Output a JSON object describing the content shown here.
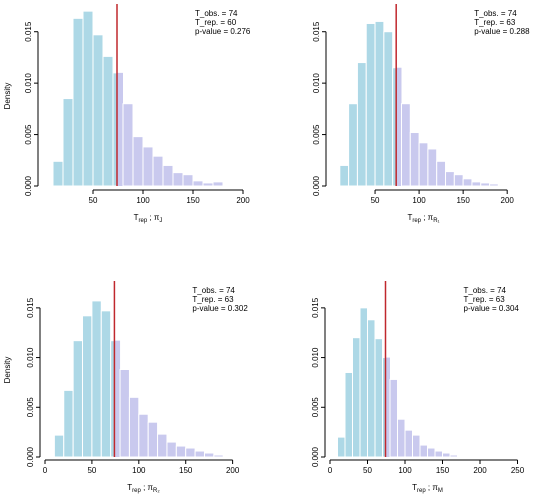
{
  "chart_data": [
    {
      "type": "bar",
      "title": "",
      "ylabel": "Density",
      "xlabel_main": "T",
      "xlabel_sub": "rep",
      "xlabel_rest": " ; π",
      "xlabel_subsub": "J",
      "annotations": [
        "T_obs. = 74",
        "T_rep. = 60",
        "p-value = 0.276"
      ],
      "xlim": [
        0,
        210
      ],
      "ylim": [
        0,
        0.0175
      ],
      "xticks": [
        50,
        100,
        150,
        200
      ],
      "xtick_labels": [
        "50",
        "100",
        "150",
        "200"
      ],
      "yticks": [
        0,
        0.005,
        0.01,
        0.015
      ],
      "ytick_labels": [
        "0.000",
        "0.005",
        "0.010",
        "0.015"
      ],
      "bin_width": 10,
      "bins_start": [
        10,
        20,
        30,
        40,
        50,
        60,
        70,
        80,
        90,
        100,
        110,
        120,
        130,
        140,
        150,
        160,
        170
      ],
      "density": [
        0.0024,
        0.0085,
        0.0163,
        0.017,
        0.0147,
        0.0126,
        0.011,
        0.008,
        0.0048,
        0.0038,
        0.0029,
        0.002,
        0.0013,
        0.0011,
        0.0005,
        0.0003,
        0.0004
      ],
      "obs_line": 74,
      "colors": {
        "bar_fill": "#add8e6",
        "bar_stroke": "#ffffff",
        "obs_line": "#c0282d",
        "overlay": "#c9c9ee"
      }
    },
    {
      "type": "bar",
      "title": "",
      "ylabel": "",
      "xlabel_main": "T",
      "xlabel_sub": "rep",
      "xlabel_rest": " ; π",
      "xlabel_subsub": "R₁",
      "annotations": [
        "T_obs. = 74",
        "T_rep. = 63",
        "p-value = 0.288"
      ],
      "xlim": [
        0,
        210
      ],
      "ylim": [
        0,
        0.0175
      ],
      "xticks": [
        50,
        100,
        150,
        200
      ],
      "xtick_labels": [
        "50",
        "100",
        "150",
        "200"
      ],
      "yticks": [
        0,
        0.005,
        0.01,
        0.015
      ],
      "ytick_labels": [
        "0.000",
        "0.005",
        "0.010",
        "0.015"
      ],
      "bin_width": 10,
      "bins_start": [
        10,
        20,
        30,
        40,
        50,
        60,
        70,
        80,
        90,
        100,
        110,
        120,
        130,
        140,
        150,
        160,
        170,
        180,
        190
      ],
      "density": [
        0.002,
        0.008,
        0.012,
        0.0158,
        0.016,
        0.015,
        0.0115,
        0.008,
        0.0052,
        0.0042,
        0.0036,
        0.0024,
        0.0014,
        0.0011,
        0.0007,
        0.0004,
        0.0003,
        0.0002,
        0.0001
      ],
      "obs_line": 74,
      "colors": {
        "bar_fill": "#add8e6",
        "bar_stroke": "#ffffff",
        "obs_line": "#c0282d",
        "overlay": "#c9c9ee"
      }
    },
    {
      "type": "bar",
      "title": "",
      "ylabel": "Density",
      "xlabel_main": "T",
      "xlabel_sub": "rep",
      "xlabel_rest": " ; π",
      "xlabel_subsub": "R₂",
      "annotations": [
        "T_obs. = 74",
        "T_rep. = 63",
        "p-value = 0.302"
      ],
      "xlim": [
        0,
        210
      ],
      "ylim": [
        0,
        0.0175
      ],
      "xticks": [
        0,
        50,
        100,
        150,
        200
      ],
      "xtick_labels": [
        "0",
        "50",
        "100",
        "150",
        "200"
      ],
      "yticks": [
        0,
        0.005,
        0.01,
        0.015
      ],
      "ytick_labels": [
        "0.000",
        "0.005",
        "0.010",
        "0.015"
      ],
      "bin_width": 10,
      "bins_start": [
        10,
        20,
        30,
        40,
        50,
        60,
        70,
        80,
        90,
        100,
        110,
        120,
        130,
        140,
        150,
        160,
        170,
        180
      ],
      "density": [
        0.0022,
        0.0067,
        0.0117,
        0.0142,
        0.0157,
        0.0147,
        0.0117,
        0.0088,
        0.006,
        0.0043,
        0.0035,
        0.0023,
        0.0015,
        0.0011,
        0.0009,
        0.0006,
        0.0004,
        0.0002
      ],
      "obs_line": 74,
      "colors": {
        "bar_fill": "#add8e6",
        "bar_stroke": "#ffffff",
        "obs_line": "#c0282d",
        "overlay": "#c9c9ee"
      }
    },
    {
      "type": "bar",
      "title": "",
      "ylabel": "",
      "xlabel_main": "T",
      "xlabel_sub": "rep",
      "xlabel_rest": " ; π",
      "xlabel_subsub": "M",
      "annotations": [
        "T_obs. = 74",
        "T_rep. = 63",
        "p-value = 0.304"
      ],
      "xlim": [
        0,
        260
      ],
      "ylim": [
        0,
        0.0175
      ],
      "xticks": [
        0,
        50,
        100,
        150,
        200,
        250
      ],
      "xtick_labels": [
        "0",
        "50",
        "100",
        "150",
        "200",
        "250"
      ],
      "yticks": [
        0,
        0.005,
        0.01,
        0.015
      ],
      "ytick_labels": [
        "0.000",
        "0.005",
        "0.010",
        "0.015"
      ],
      "bin_width": 10,
      "bins_start": [
        10,
        20,
        30,
        40,
        50,
        60,
        70,
        80,
        90,
        100,
        110,
        120,
        130,
        140,
        150,
        160,
        170
      ],
      "density": [
        0.002,
        0.0085,
        0.012,
        0.015,
        0.0138,
        0.0119,
        0.01,
        0.0078,
        0.0038,
        0.0027,
        0.0022,
        0.0012,
        0.0009,
        0.0006,
        0.0004,
        0.0002,
        0.0001
      ],
      "obs_line": 74,
      "colors": {
        "bar_fill": "#add8e6",
        "bar_stroke": "#ffffff",
        "obs_line": "#c0282d",
        "overlay": "#c9c9ee"
      }
    }
  ]
}
